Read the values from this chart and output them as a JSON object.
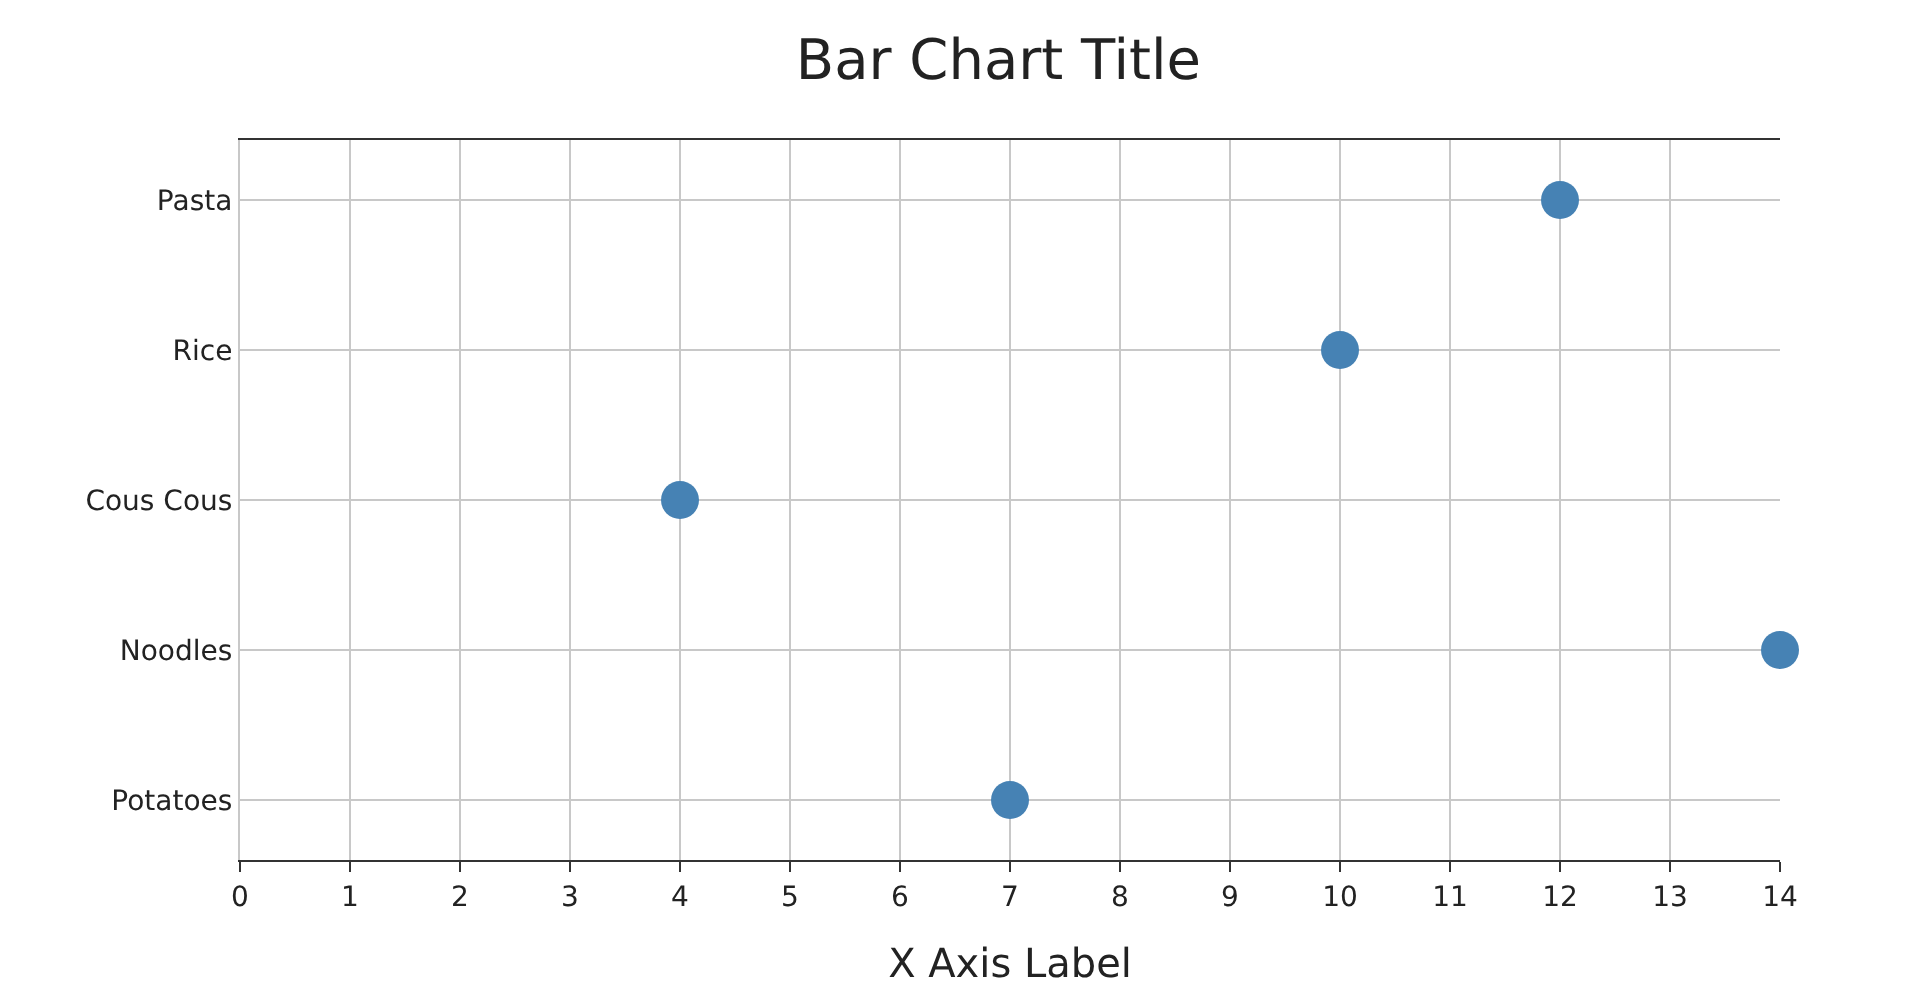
{
  "chart_data": {
    "type": "scatter",
    "orientation": "horizontal",
    "title": "Bar Chart Title",
    "xlabel": "X Axis Label",
    "categories": [
      "Pasta",
      "Rice",
      "Cous Cous",
      "Noodles",
      "Potatoes"
    ],
    "values": [
      12,
      10,
      4,
      14,
      7
    ],
    "color": "#4682b4",
    "marker": "circle",
    "xlim": [
      0,
      14
    ],
    "xticks": [
      0,
      1,
      2,
      3,
      4,
      5,
      6,
      7,
      8,
      9,
      10,
      11,
      12,
      13,
      14
    ],
    "grid": true
  }
}
